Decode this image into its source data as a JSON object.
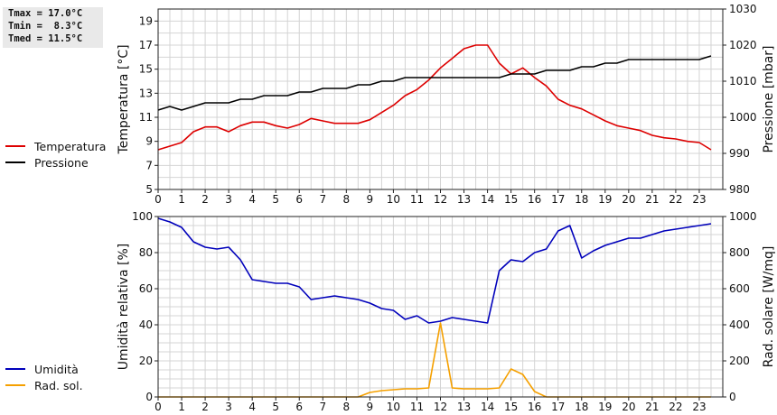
{
  "stats": {
    "tmax": "Tmax = 17.0°C",
    "tmin": "Tmin =  8.3°C",
    "tmed": "Tmed = 11.5°C"
  },
  "colors": {
    "temperature": "#dd0000",
    "pressure": "#000000",
    "humidity": "#0000bb",
    "radiation": "#f5a000",
    "grid": "#d4d4d4"
  },
  "chart_data": [
    {
      "type": "line",
      "grid": true,
      "xlim": [
        0,
        24
      ],
      "x_ticks": [
        "0",
        "1",
        "2",
        "3",
        "4",
        "5",
        "6",
        "7",
        "8",
        "9",
        "10",
        "11",
        "12",
        "13",
        "14",
        "15",
        "16",
        "17",
        "18",
        "19",
        "20",
        "21",
        "22",
        "23"
      ],
      "ylabel_left": "Temperatura [°C]",
      "ylabel_right": "Pressione [mbar]",
      "ylim_left": [
        5,
        20
      ],
      "ylim_right": [
        980,
        1030
      ],
      "yticks_left": [
        "5",
        "7",
        "9",
        "11",
        "13",
        "15",
        "17",
        "19"
      ],
      "yticks_right": [
        "980",
        "990",
        "1000",
        "1010",
        "1020",
        "1030"
      ],
      "series": [
        {
          "name": "Temperatura",
          "axis": "left",
          "x": [
            0,
            0.5,
            1,
            1.5,
            2,
            2.5,
            3,
            3.5,
            4,
            4.5,
            5,
            5.5,
            6,
            6.5,
            7,
            7.5,
            8,
            8.5,
            9,
            9.5,
            10,
            10.5,
            11,
            11.5,
            12,
            12.5,
            13,
            13.5,
            14,
            14.5,
            15,
            15.5,
            16,
            16.5,
            17,
            17.5,
            18,
            18.5,
            19,
            19.5,
            20,
            20.5,
            21,
            21.5,
            22,
            22.5,
            23,
            23.5
          ],
          "y": [
            8.3,
            8.6,
            8.9,
            9.8,
            10.2,
            10.2,
            9.8,
            10.3,
            10.6,
            10.6,
            10.3,
            10.1,
            10.4,
            10.9,
            10.7,
            10.5,
            10.5,
            10.5,
            10.8,
            11.4,
            12.0,
            12.8,
            13.3,
            14.1,
            15.1,
            15.9,
            16.7,
            17.0,
            17.0,
            15.5,
            14.6,
            15.1,
            14.3,
            13.6,
            12.5,
            12.0,
            11.7,
            11.2,
            10.7,
            10.3,
            10.1,
            9.9,
            9.5,
            9.3,
            9.2,
            9.0,
            8.9,
            8.3
          ]
        },
        {
          "name": "Pressione",
          "axis": "right",
          "x": [
            0,
            0.5,
            1,
            1.5,
            2,
            2.5,
            3,
            3.5,
            4,
            4.5,
            5,
            5.5,
            6,
            6.5,
            7,
            7.5,
            8,
            8.5,
            9,
            9.5,
            10,
            10.5,
            11,
            11.5,
            12,
            12.5,
            13,
            13.5,
            14,
            14.5,
            15,
            15.5,
            16,
            16.5,
            17,
            17.5,
            18,
            18.5,
            19,
            19.5,
            20,
            20.5,
            21,
            21.5,
            22,
            22.5,
            23,
            23.5
          ],
          "y": [
            1002,
            1003,
            1002,
            1003,
            1004,
            1004,
            1004,
            1005,
            1005,
            1006,
            1006,
            1006,
            1007,
            1007,
            1008,
            1008,
            1008,
            1009,
            1009,
            1010,
            1010,
            1011,
            1011,
            1011,
            1011,
            1011,
            1011,
            1011,
            1011,
            1011,
            1012,
            1012,
            1012,
            1013,
            1013,
            1013,
            1014,
            1014,
            1015,
            1015,
            1016,
            1016,
            1016,
            1016,
            1016,
            1016,
            1016,
            1017
          ]
        }
      ]
    },
    {
      "type": "line",
      "grid": true,
      "xlim": [
        0,
        24
      ],
      "x_ticks": [
        "0",
        "1",
        "2",
        "3",
        "4",
        "5",
        "6",
        "7",
        "8",
        "9",
        "10",
        "11",
        "12",
        "13",
        "14",
        "15",
        "16",
        "17",
        "18",
        "19",
        "20",
        "21",
        "22",
        "23"
      ],
      "ylabel_left": "Umidità relativa [%]",
      "ylabel_right": "Rad. solare [W/mq]",
      "ylim_left": [
        0,
        100
      ],
      "ylim_right": [
        0,
        1000
      ],
      "yticks_left": [
        "0",
        "20",
        "40",
        "60",
        "80",
        "100"
      ],
      "yticks_right": [
        "0",
        "200",
        "400",
        "600",
        "800",
        "1000"
      ],
      "series": [
        {
          "name": "Umidità",
          "axis": "left",
          "x": [
            0,
            0.5,
            1,
            1.5,
            2,
            2.5,
            3,
            3.5,
            4,
            4.5,
            5,
            5.5,
            6,
            6.5,
            7,
            7.5,
            8,
            8.5,
            9,
            9.5,
            10,
            10.5,
            11,
            11.5,
            12,
            12.5,
            13,
            13.5,
            14,
            14.5,
            15,
            15.5,
            16,
            16.5,
            17,
            17.5,
            18,
            18.5,
            19,
            19.5,
            20,
            20.5,
            21,
            21.5,
            22,
            22.5,
            23,
            23.5
          ],
          "y": [
            99,
            97,
            94,
            86,
            83,
            82,
            83,
            76,
            65,
            64,
            63,
            63,
            61,
            54,
            55,
            56,
            55,
            54,
            52,
            49,
            48,
            43,
            45,
            41,
            42,
            44,
            43,
            42,
            41,
            70,
            76,
            75,
            80,
            82,
            92,
            95,
            77,
            81,
            84,
            86,
            88,
            88,
            90,
            92,
            93,
            94,
            95,
            96
          ]
        },
        {
          "name": "Rad. sol.",
          "axis": "right",
          "x": [
            0,
            0.5,
            1,
            1.5,
            2,
            2.5,
            3,
            3.5,
            4,
            4.5,
            5,
            5.5,
            6,
            6.5,
            7,
            7.5,
            8,
            8.5,
            9,
            9.5,
            10,
            10.5,
            11,
            11.5,
            12,
            12.5,
            13,
            13.5,
            14,
            14.5,
            15,
            15.5,
            16,
            16.5,
            17,
            17.5,
            18,
            18.5,
            19,
            19.5,
            20,
            20.5,
            21,
            21.5,
            22,
            22.5,
            23,
            23.5
          ],
          "y": [
            0,
            0,
            0,
            0,
            0,
            0,
            0,
            0,
            0,
            0,
            0,
            0,
            0,
            0,
            0,
            0,
            0,
            0,
            25,
            35,
            40,
            45,
            45,
            50,
            410,
            50,
            45,
            45,
            45,
            50,
            155,
            125,
            30,
            0,
            0,
            0,
            0,
            0,
            0,
            0,
            0,
            0,
            0,
            0,
            0,
            0,
            0,
            0
          ]
        }
      ]
    }
  ]
}
